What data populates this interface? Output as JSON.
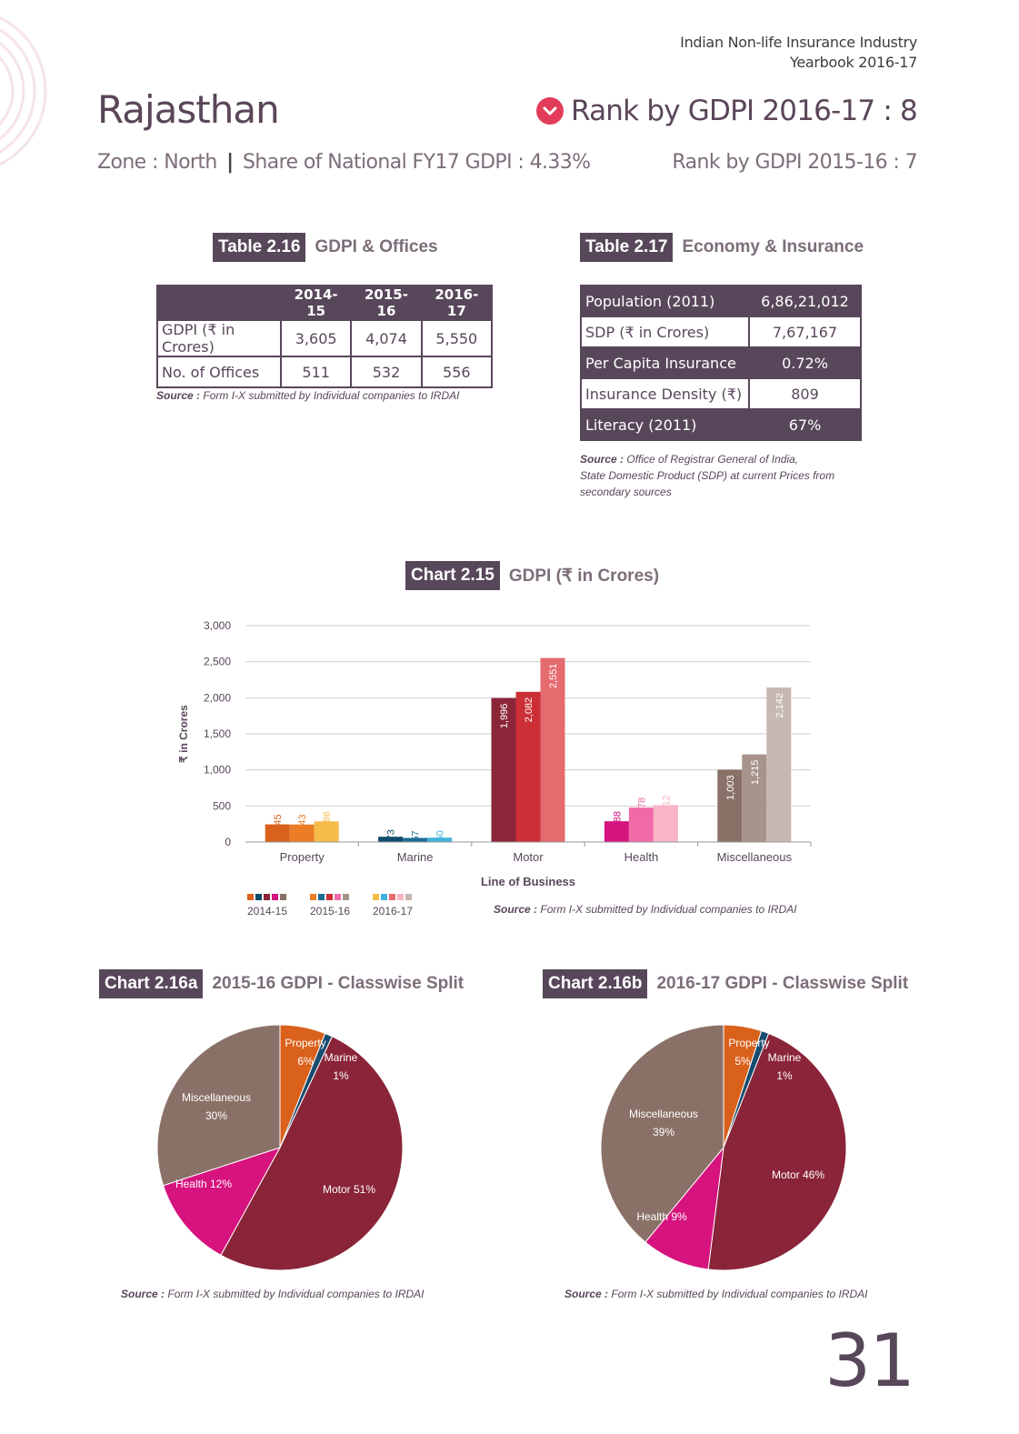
{
  "header": {
    "line1": "Indian Non-life Insurance Industry",
    "line2": "Yearbook 2016-17"
  },
  "state": {
    "name": "Rajasthan",
    "rank_main": "Rank by GDPI 2016-17 : 8",
    "zone": "Zone : North",
    "share": "Share of National FY17 GDPI : 4.33%",
    "rank_prev": "Rank by GDPI 2015-16 : 7",
    "colors": {
      "rank_down": "#e23c5a",
      "accent": "#58475a"
    }
  },
  "table_216": {
    "tag": "Table 2.16",
    "title": "GDPI & Offices",
    "headers": [
      "",
      "2014-15",
      "2015-16",
      "2016-17"
    ],
    "rows": [
      [
        "GDPI (₹ in Crores)",
        "3,605",
        "4,074",
        "5,550"
      ],
      [
        "No. of Offices",
        "511",
        "532",
        "556"
      ]
    ],
    "source_label": "Source :",
    "source_text": "Form I-X submitted by Individual companies to IRDAI"
  },
  "table_217": {
    "tag": "Table 2.17",
    "title": "Economy & Insurance",
    "rows": [
      [
        "Population (2011)",
        "6,86,21,012"
      ],
      [
        "SDP (₹ in Crores)",
        "7,67,167"
      ],
      [
        "Per Capita Insurance",
        "0.72%"
      ],
      [
        "Insurance Density (₹)",
        "809"
      ],
      [
        "Literacy (2011)",
        "67%"
      ]
    ],
    "source_label": "Source :",
    "source_text_1": "Office of Registrar General of India,",
    "source_text_2": "State Domestic Product (SDP) at current Prices from",
    "source_text_3": "secondary sources"
  },
  "chart_215": {
    "tag": "Chart 2.15",
    "title": "GDPI (₹ in Crores)",
    "source_label": "Source :",
    "source_text": "Form I-X submitted by Individual companies to IRDAI"
  },
  "chart_216a": {
    "tag": "Chart 2.16a",
    "title": "2015-16 GDPI - Classwise Split",
    "source_label": "Source :",
    "source_text": "Form I-X submitted by Individual companies to IRDAI"
  },
  "chart_216b": {
    "tag": "Chart 2.16b",
    "title": "2016-17 GDPI - Classwise Split",
    "source_label": "Source :",
    "source_text": "Form I-X submitted by Individual companies to IRDAI"
  },
  "chart_data": [
    {
      "type": "bar",
      "xlabel": "Line of Business",
      "ylabel": "₹ in Crores",
      "ylim": [
        0,
        3000
      ],
      "yticks": [
        "0",
        "500",
        "1,000",
        "1,500",
        "2,000",
        "2,500",
        "3,000"
      ],
      "grid": true,
      "categories": [
        "Property",
        "Marine",
        "Motor",
        "Health",
        "Miscellaneous"
      ],
      "series": [
        {
          "name": "2014-15",
          "values": [
            245,
            73,
            1996,
            288,
            1003
          ],
          "labels": [
            "245",
            "73",
            "1,996",
            "288",
            "1,003"
          ]
        },
        {
          "name": "2015-16",
          "values": [
            243,
            57,
            2082,
            478,
            1215
          ],
          "labels": [
            "243",
            "57",
            "2,082",
            "478",
            "1,215"
          ]
        },
        {
          "name": "2016-17",
          "values": [
            286,
            60,
            2551,
            512,
            2142
          ],
          "labels": [
            "286",
            "60",
            "2,551",
            "512",
            "2,142"
          ]
        }
      ],
      "colors": [
        [
          "#d9611c",
          "#0f4a6b",
          "#8b2638",
          "#d4147f",
          "#8a7167"
        ],
        [
          "#ea7d25",
          "#1a6c94",
          "#cc2f36",
          "#f06aa8",
          "#a8938b"
        ],
        [
          "#f6bc4a",
          "#41b2dc",
          "#e56b6f",
          "#f7b5c6",
          "#c6b9b1"
        ]
      ],
      "legend_position": "bottom-left"
    },
    {
      "type": "pie",
      "labels": [
        "Property",
        "Marine",
        "Motor",
        "Health",
        "Miscellaneous"
      ],
      "values": [
        6,
        1,
        51,
        12,
        30
      ],
      "display": [
        "6%",
        "1%",
        "51%",
        "12%",
        "30%"
      ],
      "colors": [
        "#d9611c",
        "#174c6e",
        "#8a2438",
        "#d6137e",
        "#8a7167"
      ]
    },
    {
      "type": "pie",
      "labels": [
        "Property",
        "Marine",
        "Motor",
        "Health",
        "Miscellaneous"
      ],
      "values": [
        5,
        1,
        46,
        9,
        39
      ],
      "display": [
        "5%",
        "1%",
        "46%",
        "9%",
        "39%"
      ],
      "colors": [
        "#d9611c",
        "#174c6e",
        "#8a2438",
        "#d6137e",
        "#8a7167"
      ]
    }
  ],
  "page_number": "31"
}
